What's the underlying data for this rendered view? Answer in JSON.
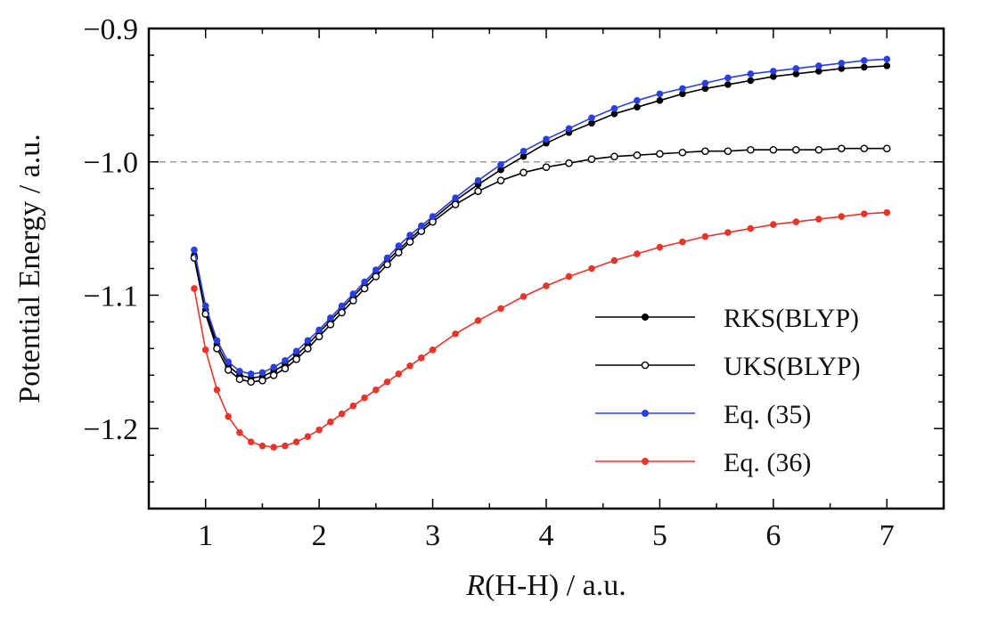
{
  "chart_data": {
    "type": "line",
    "xlabel_italic": "R",
    "xlabel_rest": "(H-H) / a.u.",
    "ylabel": "Potential Energy / a.u.",
    "xlim": [
      0.5,
      7.5
    ],
    "ylim": [
      -1.26,
      -0.9
    ],
    "xticks": [
      1,
      2,
      3,
      4,
      5,
      6,
      7
    ],
    "xtick_labels": [
      "1",
      "2",
      "3",
      "4",
      "5",
      "6",
      "7"
    ],
    "yticks": [
      -0.9,
      -1.0,
      -1.1,
      -1.2
    ],
    "ytick_labels": [
      "−0.9",
      "−1.0",
      "−1.1",
      "−1.2"
    ],
    "reference_line": {
      "y": -1.0,
      "color": "#999999",
      "style": "dashed"
    },
    "grid": false,
    "legend_position": "lower-right",
    "series": [
      {
        "name": "RKS(BLYP)",
        "color": "#000000",
        "marker": "filled",
        "x": [
          0.9,
          1.0,
          1.1,
          1.2,
          1.3,
          1.4,
          1.5,
          1.6,
          1.7,
          1.8,
          1.9,
          2.0,
          2.1,
          2.2,
          2.3,
          2.4,
          2.5,
          2.6,
          2.7,
          2.8,
          2.9,
          3.0,
          3.2,
          3.4,
          3.6,
          3.8,
          4.0,
          4.2,
          4.4,
          4.6,
          4.8,
          5.0,
          5.2,
          5.4,
          5.6,
          5.8,
          6.0,
          6.2,
          6.4,
          6.6,
          6.8,
          7.0
        ],
        "y": [
          -1.07,
          -1.111,
          -1.137,
          -1.153,
          -1.16,
          -1.162,
          -1.161,
          -1.157,
          -1.152,
          -1.145,
          -1.137,
          -1.128,
          -1.119,
          -1.11,
          -1.101,
          -1.092,
          -1.083,
          -1.074,
          -1.066,
          -1.058,
          -1.05,
          -1.043,
          -1.029,
          -1.017,
          -1.006,
          -0.996,
          -0.986,
          -0.978,
          -0.971,
          -0.964,
          -0.959,
          -0.954,
          -0.949,
          -0.945,
          -0.942,
          -0.939,
          -0.936,
          -0.934,
          -0.932,
          -0.93,
          -0.929,
          -0.928
        ]
      },
      {
        "name": "UKS(BLYP)",
        "color": "#000000",
        "marker": "open",
        "x": [
          0.9,
          1.0,
          1.1,
          1.2,
          1.3,
          1.4,
          1.5,
          1.6,
          1.7,
          1.8,
          1.9,
          2.0,
          2.1,
          2.2,
          2.3,
          2.4,
          2.5,
          2.6,
          2.7,
          2.8,
          2.9,
          3.0,
          3.2,
          3.4,
          3.6,
          3.8,
          4.0,
          4.2,
          4.4,
          4.6,
          4.8,
          5.0,
          5.2,
          5.4,
          5.6,
          5.8,
          6.0,
          6.2,
          6.4,
          6.6,
          6.8,
          7.0
        ],
        "y": [
          -1.072,
          -1.114,
          -1.14,
          -1.156,
          -1.163,
          -1.165,
          -1.164,
          -1.16,
          -1.155,
          -1.148,
          -1.14,
          -1.131,
          -1.122,
          -1.113,
          -1.104,
          -1.095,
          -1.086,
          -1.077,
          -1.068,
          -1.06,
          -1.052,
          -1.045,
          -1.032,
          -1.022,
          -1.014,
          -1.008,
          -1.004,
          -1.001,
          -0.998,
          -0.996,
          -0.995,
          -0.994,
          -0.993,
          -0.992,
          -0.992,
          -0.991,
          -0.991,
          -0.991,
          -0.991,
          -0.99,
          -0.99,
          -0.99
        ]
      },
      {
        "name": "Eq. (35)",
        "color": "#2b3fe0",
        "marker": "filled",
        "x": [
          0.9,
          1.0,
          1.1,
          1.2,
          1.3,
          1.4,
          1.5,
          1.6,
          1.7,
          1.8,
          1.9,
          2.0,
          2.1,
          2.2,
          2.3,
          2.4,
          2.5,
          2.6,
          2.7,
          2.8,
          2.9,
          3.0,
          3.2,
          3.4,
          3.6,
          3.8,
          4.0,
          4.2,
          4.4,
          4.6,
          4.8,
          5.0,
          5.2,
          5.4,
          5.6,
          5.8,
          6.0,
          6.2,
          6.4,
          6.6,
          6.8,
          7.0
        ],
        "y": [
          -1.066,
          -1.108,
          -1.134,
          -1.15,
          -1.157,
          -1.159,
          -1.158,
          -1.154,
          -1.149,
          -1.142,
          -1.134,
          -1.126,
          -1.117,
          -1.108,
          -1.099,
          -1.09,
          -1.081,
          -1.072,
          -1.063,
          -1.055,
          -1.048,
          -1.041,
          -1.027,
          -1.014,
          -1.002,
          -0.992,
          -0.983,
          -0.975,
          -0.967,
          -0.96,
          -0.954,
          -0.949,
          -0.945,
          -0.941,
          -0.937,
          -0.934,
          -0.932,
          -0.93,
          -0.928,
          -0.926,
          -0.924,
          -0.923
        ]
      },
      {
        "name": "Eq. (36)",
        "color": "#e8352b",
        "marker": "filled",
        "x": [
          0.9,
          1.0,
          1.1,
          1.2,
          1.3,
          1.4,
          1.5,
          1.6,
          1.7,
          1.8,
          1.9,
          2.0,
          2.1,
          2.2,
          2.3,
          2.4,
          2.5,
          2.6,
          2.7,
          2.8,
          2.9,
          3.0,
          3.2,
          3.4,
          3.6,
          3.8,
          4.0,
          4.2,
          4.4,
          4.6,
          4.8,
          5.0,
          5.2,
          5.4,
          5.6,
          5.8,
          6.0,
          6.2,
          6.4,
          6.6,
          6.8,
          7.0
        ],
        "y": [
          -1.095,
          -1.141,
          -1.171,
          -1.191,
          -1.203,
          -1.21,
          -1.213,
          -1.214,
          -1.213,
          -1.21,
          -1.206,
          -1.201,
          -1.195,
          -1.189,
          -1.183,
          -1.177,
          -1.171,
          -1.165,
          -1.159,
          -1.153,
          -1.147,
          -1.141,
          -1.129,
          -1.119,
          -1.11,
          -1.101,
          -1.093,
          -1.086,
          -1.08,
          -1.074,
          -1.069,
          -1.064,
          -1.06,
          -1.056,
          -1.053,
          -1.05,
          -1.047,
          -1.045,
          -1.043,
          -1.041,
          -1.039,
          -1.038
        ]
      }
    ]
  }
}
